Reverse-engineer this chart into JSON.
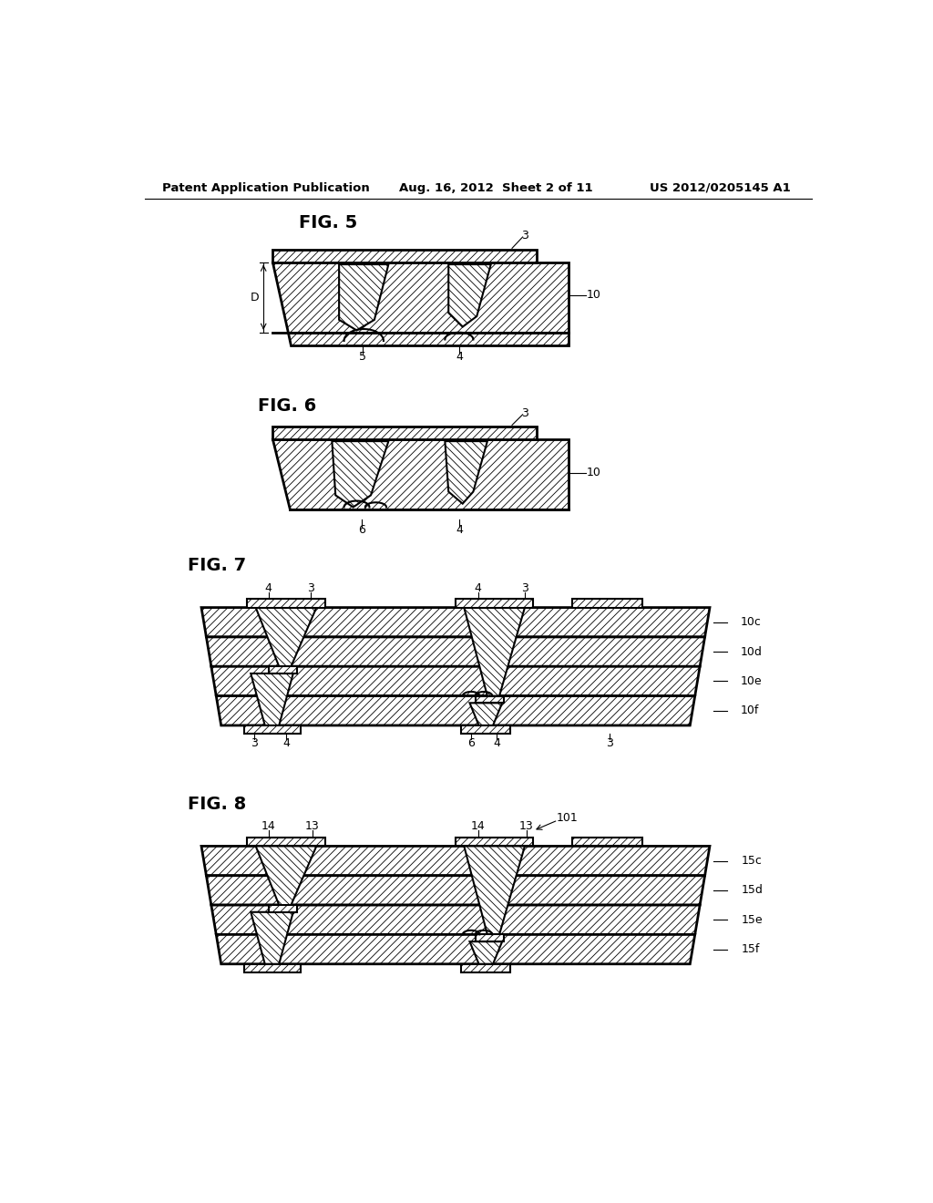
{
  "title_left": "Patent Application Publication",
  "title_mid": "Aug. 16, 2012  Sheet 2 of 11",
  "title_right": "US 2012/0205145 A1",
  "bg_color": "#ffffff",
  "fig5_label": "FIG. 5",
  "fig6_label": "FIG. 6",
  "fig7_label": "FIG. 7",
  "fig8_label": "FIG. 8",
  "fig7_right_labels": [
    "10c",
    "10d",
    "10e",
    "10f"
  ],
  "fig8_right_labels": [
    "15c",
    "15d",
    "15e",
    "15f"
  ]
}
